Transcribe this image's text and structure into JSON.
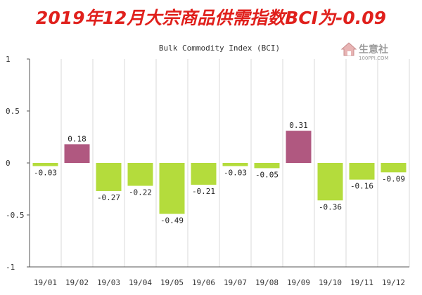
{
  "headline": "2019年12月大宗商品供需指数BCI为-0.09",
  "logo": {
    "text": "生意社",
    "url": "100PPI.COM"
  },
  "colors": {
    "positive": "#b05880",
    "negative": "#b4dc3c",
    "headline": "#e0201c"
  },
  "chart_data": {
    "type": "bar",
    "title": "Bulk Commodity Index (BCI)",
    "categories": [
      "19/01",
      "19/02",
      "19/03",
      "19/04",
      "19/05",
      "19/06",
      "19/07",
      "19/08",
      "19/09",
      "19/10",
      "19/11",
      "19/12"
    ],
    "values": [
      -0.03,
      0.18,
      -0.27,
      -0.22,
      -0.49,
      -0.21,
      -0.03,
      -0.05,
      0.31,
      -0.36,
      -0.16,
      -0.09
    ],
    "value_labels": [
      "-0.03",
      "0.18",
      "-0.27",
      "-0.22",
      "-0.49",
      "-0.21",
      "-0.03",
      "-0.05",
      "0.31",
      "-0.36",
      "-0.16",
      "-0.09"
    ],
    "yticks": [
      "1",
      "0.5",
      "0",
      "-0.5",
      "-1"
    ],
    "ytick_values": [
      1,
      0.5,
      0,
      -0.5,
      -1
    ],
    "ylim": [
      -1,
      1
    ],
    "grid": "vertical",
    "xlabel": "",
    "ylabel": ""
  }
}
